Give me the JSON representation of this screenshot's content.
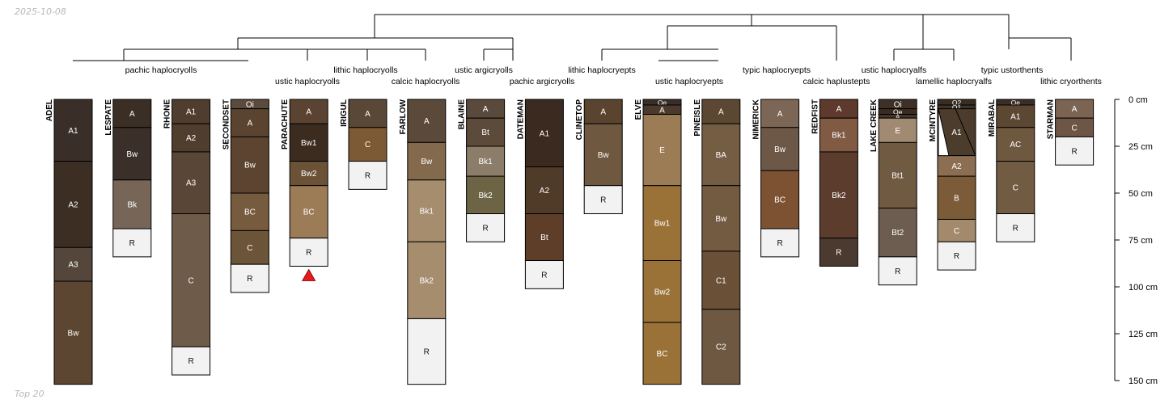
{
  "header": {
    "date": "2025-10-08"
  },
  "footer": {
    "label": "Top 20"
  },
  "depth_axis": {
    "unit": "cm",
    "max_depth": 150,
    "ticks": [
      {
        "value": 0,
        "label": "0 cm"
      },
      {
        "value": 25,
        "label": "25 cm"
      },
      {
        "value": 50,
        "label": "50 cm"
      },
      {
        "value": 75,
        "label": "75 cm"
      },
      {
        "value": 100,
        "label": "100 cm"
      },
      {
        "value": 125,
        "label": "125 cm"
      },
      {
        "value": 150,
        "label": "150 cm"
      }
    ]
  },
  "profiles": [
    {
      "name": "ADEL",
      "horizons": [
        {
          "name": "A1",
          "top": 0,
          "bottom": 33,
          "color": "#3a2f28"
        },
        {
          "name": "A2",
          "top": 33,
          "bottom": 79,
          "color": "#3d2e24"
        },
        {
          "name": "A3",
          "top": 79,
          "bottom": 97,
          "color": "#54463a"
        },
        {
          "name": "Bw",
          "top": 97,
          "bottom": 152,
          "color": "#5c4631"
        }
      ]
    },
    {
      "name": "LESPATE",
      "horizons": [
        {
          "name": "A",
          "top": 0,
          "bottom": 15,
          "color": "#3b2e24"
        },
        {
          "name": "Bw",
          "top": 15,
          "bottom": 43,
          "color": "#3a3029"
        },
        {
          "name": "Bk",
          "top": 43,
          "bottom": 69,
          "color": "#776657"
        },
        {
          "name": "R",
          "top": 69,
          "bottom": 84,
          "color": "#f2f2f2"
        }
      ]
    },
    {
      "name": "RHONE",
      "horizons": [
        {
          "name": "A1",
          "top": 0,
          "bottom": 13,
          "color": "#4f3d2e"
        },
        {
          "name": "A2",
          "top": 13,
          "bottom": 28,
          "color": "#4f3d2e"
        },
        {
          "name": "A3",
          "top": 28,
          "bottom": 61,
          "color": "#5a4636"
        },
        {
          "name": "C",
          "top": 61,
          "bottom": 132,
          "color": "#6f5b4a"
        },
        {
          "name": "R",
          "top": 132,
          "bottom": 147,
          "color": "#f2f2f2"
        }
      ]
    },
    {
      "name": "SECONDSET",
      "horizons": [
        {
          "name": "Oi",
          "top": 0,
          "bottom": 5,
          "color": "#5b4b3e"
        },
        {
          "name": "A",
          "top": 5,
          "bottom": 20,
          "color": "#5a4430"
        },
        {
          "name": "Bw",
          "top": 20,
          "bottom": 50,
          "color": "#5c4430"
        },
        {
          "name": "BC",
          "top": 50,
          "bottom": 70,
          "color": "#775b3e"
        },
        {
          "name": "C",
          "top": 70,
          "bottom": 88,
          "color": "#6c5438"
        },
        {
          "name": "R",
          "top": 88,
          "bottom": 103,
          "color": "#f2f2f2"
        }
      ]
    },
    {
      "name": "PARACHUTE",
      "horizons": [
        {
          "name": "A",
          "top": 0,
          "bottom": 13,
          "color": "#5a4330"
        },
        {
          "name": "Bw1",
          "top": 13,
          "bottom": 33,
          "color": "#3c2c20"
        },
        {
          "name": "Bw2",
          "top": 33,
          "bottom": 46,
          "color": "#6b5236"
        },
        {
          "name": "BC",
          "top": 46,
          "bottom": 74,
          "color": "#9c7b57"
        },
        {
          "name": "R",
          "top": 74,
          "bottom": 89,
          "color": "#f2f2f2"
        }
      ]
    },
    {
      "name": "IRIGUL",
      "horizons": [
        {
          "name": "A",
          "top": 0,
          "bottom": 15,
          "color": "#5a4836"
        },
        {
          "name": "C",
          "top": 15,
          "bottom": 33,
          "color": "#7d5a36"
        },
        {
          "name": "R",
          "top": 33,
          "bottom": 48,
          "color": "#f2f2f2"
        }
      ]
    },
    {
      "name": "FARLOW",
      "horizons": [
        {
          "name": "A",
          "top": 0,
          "bottom": 23,
          "color": "#5b4a3a"
        },
        {
          "name": "Bw",
          "top": 23,
          "bottom": 43,
          "color": "#846a4c"
        },
        {
          "name": "Bk1",
          "top": 43,
          "bottom": 76,
          "color": "#a68d6e"
        },
        {
          "name": "Bk2",
          "top": 76,
          "bottom": 117,
          "color": "#a68d6e"
        },
        {
          "name": "R",
          "top": 117,
          "bottom": 152,
          "color": "#f2f2f2"
        }
      ]
    },
    {
      "name": "BLAINE",
      "horizons": [
        {
          "name": "A",
          "top": 0,
          "bottom": 10,
          "color": "#5a4a3c"
        },
        {
          "name": "Bt",
          "top": 10,
          "bottom": 25,
          "color": "#5c4a3a"
        },
        {
          "name": "Bk1",
          "top": 25,
          "bottom": 41,
          "color": "#8c7d6a"
        },
        {
          "name": "Bk2",
          "top": 41,
          "bottom": 61,
          "color": "#6d6445"
        },
        {
          "name": "R",
          "top": 61,
          "bottom": 76,
          "color": "#f2f2f2"
        }
      ]
    },
    {
      "name": "DATEMAN",
      "horizons": [
        {
          "name": "A1",
          "top": 0,
          "bottom": 36,
          "color": "#3a2a20"
        },
        {
          "name": "A2",
          "top": 36,
          "bottom": 61,
          "color": "#503a28"
        },
        {
          "name": "Bt",
          "top": 61,
          "bottom": 86,
          "color": "#5e3e28"
        },
        {
          "name": "R",
          "top": 86,
          "bottom": 101,
          "color": "#f2f2f2"
        }
      ]
    },
    {
      "name": "CLINETOP",
      "horizons": [
        {
          "name": "A",
          "top": 0,
          "bottom": 13,
          "color": "#5a4430"
        },
        {
          "name": "Bw",
          "top": 13,
          "bottom": 46,
          "color": "#6e5840"
        },
        {
          "name": "R",
          "top": 46,
          "bottom": 61,
          "color": "#f2f2f2"
        }
      ]
    },
    {
      "name": "ELVE",
      "horizons": [
        {
          "name": "Oe",
          "top": 0,
          "bottom": 3,
          "color": "#3a2e26"
        },
        {
          "name": "A",
          "top": 3,
          "bottom": 8,
          "color": "#4a3a2e"
        },
        {
          "name": "E",
          "top": 8,
          "bottom": 46,
          "color": "#9c7c55"
        },
        {
          "name": "Bw1",
          "top": 46,
          "bottom": 86,
          "color": "#9a7238"
        },
        {
          "name": "Bw2",
          "top": 86,
          "bottom": 119,
          "color": "#9a7238"
        },
        {
          "name": "BC",
          "top": 119,
          "bottom": 152,
          "color": "#9a7238"
        }
      ]
    },
    {
      "name": "PINEISLE",
      "horizons": [
        {
          "name": "A",
          "top": 0,
          "bottom": 13,
          "color": "#5c4733"
        },
        {
          "name": "BA",
          "top": 13,
          "bottom": 46,
          "color": "#755d44"
        },
        {
          "name": "Bw",
          "top": 46,
          "bottom": 81,
          "color": "#735b42"
        },
        {
          "name": "C1",
          "top": 81,
          "bottom": 112,
          "color": "#6a5036"
        },
        {
          "name": "C2",
          "top": 112,
          "bottom": 152,
          "color": "#6f5842"
        }
      ]
    },
    {
      "name": "NIMERICK",
      "horizons": [
        {
          "name": "A",
          "top": 0,
          "bottom": 15,
          "color": "#7c6655"
        },
        {
          "name": "Bw",
          "top": 15,
          "bottom": 38,
          "color": "#6d5848"
        },
        {
          "name": "BC",
          "top": 38,
          "bottom": 69,
          "color": "#7d5232"
        },
        {
          "name": "R",
          "top": 69,
          "bottom": 84,
          "color": "#f2f2f2"
        }
      ]
    },
    {
      "name": "REDFIST",
      "horizons": [
        {
          "name": "A",
          "top": 0,
          "bottom": 10,
          "color": "#5e3a2c"
        },
        {
          "name": "Bk1",
          "top": 10,
          "bottom": 28,
          "color": "#815a44"
        },
        {
          "name": "Bk2",
          "top": 28,
          "bottom": 74,
          "color": "#5c3c2c"
        },
        {
          "name": "R",
          "top": 74,
          "bottom": 89,
          "color": "#4a3a30"
        }
      ]
    },
    {
      "name": "LAKE CREEK",
      "horizons": [
        {
          "name": "Oi",
          "top": 0,
          "bottom": 5,
          "color": "#3e3025"
        },
        {
          "name": "Oe",
          "top": 5,
          "bottom": 8,
          "color": "#3b2c22"
        },
        {
          "name": "A",
          "top": 8,
          "bottom": 10,
          "color": "#45352a"
        },
        {
          "name": "E",
          "top": 10,
          "bottom": 23,
          "color": "#a08a72"
        },
        {
          "name": "Bt1",
          "top": 23,
          "bottom": 58,
          "color": "#705a42"
        },
        {
          "name": "Bt2",
          "top": 58,
          "bottom": 84,
          "color": "#6c5d50"
        },
        {
          "name": "R",
          "top": 84,
          "bottom": 99,
          "color": "#f2f2f2"
        }
      ]
    },
    {
      "name": "MCINTYRE",
      "horizons": [
        {
          "name": "O2",
          "top": 0,
          "bottom": 3,
          "color": "#3a2e24"
        },
        {
          "name": "O1",
          "top": 3,
          "bottom": 5,
          "color": "#3f3226"
        },
        {
          "name": "A1",
          "top": 5,
          "bottom": 30,
          "color": "#4b3c2c"
        },
        {
          "name": "A2",
          "top": 30,
          "bottom": 41,
          "color": "#8c6e52"
        },
        {
          "name": "B",
          "top": 41,
          "bottom": 64,
          "color": "#7c5c38"
        },
        {
          "name": "C",
          "top": 64,
          "bottom": 76,
          "color": "#a38a6c"
        },
        {
          "name": "R",
          "top": 76,
          "bottom": 91,
          "color": "#f2f2f2"
        }
      ]
    },
    {
      "name": "MIRABAL",
      "horizons": [
        {
          "name": "Oe",
          "top": 0,
          "bottom": 3,
          "color": "#3a2e26"
        },
        {
          "name": "A1",
          "top": 3,
          "bottom": 15,
          "color": "#5c4733"
        },
        {
          "name": "AC",
          "top": 15,
          "bottom": 33,
          "color": "#6f5840"
        },
        {
          "name": "C",
          "top": 33,
          "bottom": 61,
          "color": "#725b43"
        },
        {
          "name": "R",
          "top": 61,
          "bottom": 76,
          "color": "#f2f2f2"
        }
      ]
    },
    {
      "name": "STARMAN",
      "horizons": [
        {
          "name": "A",
          "top": 0,
          "bottom": 10,
          "color": "#7c6452"
        },
        {
          "name": "C",
          "top": 10,
          "bottom": 20,
          "color": "#6e5646"
        },
        {
          "name": "R",
          "top": 20,
          "bottom": 35,
          "color": "#f2f2f2"
        }
      ]
    }
  ],
  "markers": [
    {
      "profile": "PARACHUTE",
      "shape": "triangle",
      "color": "#e41a1c"
    }
  ],
  "taxa_labels": [
    {
      "text": "pachic haplocryolls"
    },
    {
      "text": "ustic haplocryolls"
    },
    {
      "text": "lithic haplocryolls"
    },
    {
      "text": "calcic haplocryolls"
    },
    {
      "text": "ustic argicryolls"
    },
    {
      "text": "pachic argicryolls"
    },
    {
      "text": "lithic haplocryepts"
    },
    {
      "text": "ustic haplocryepts"
    },
    {
      "text": "typic haplocryepts"
    },
    {
      "text": "calcic haplustepts"
    },
    {
      "text": "ustic haplocryalfs"
    },
    {
      "text": "lamellic haplocryalfs"
    },
    {
      "text": "typic ustorthents"
    },
    {
      "text": "lithic cryorthents"
    }
  ]
}
